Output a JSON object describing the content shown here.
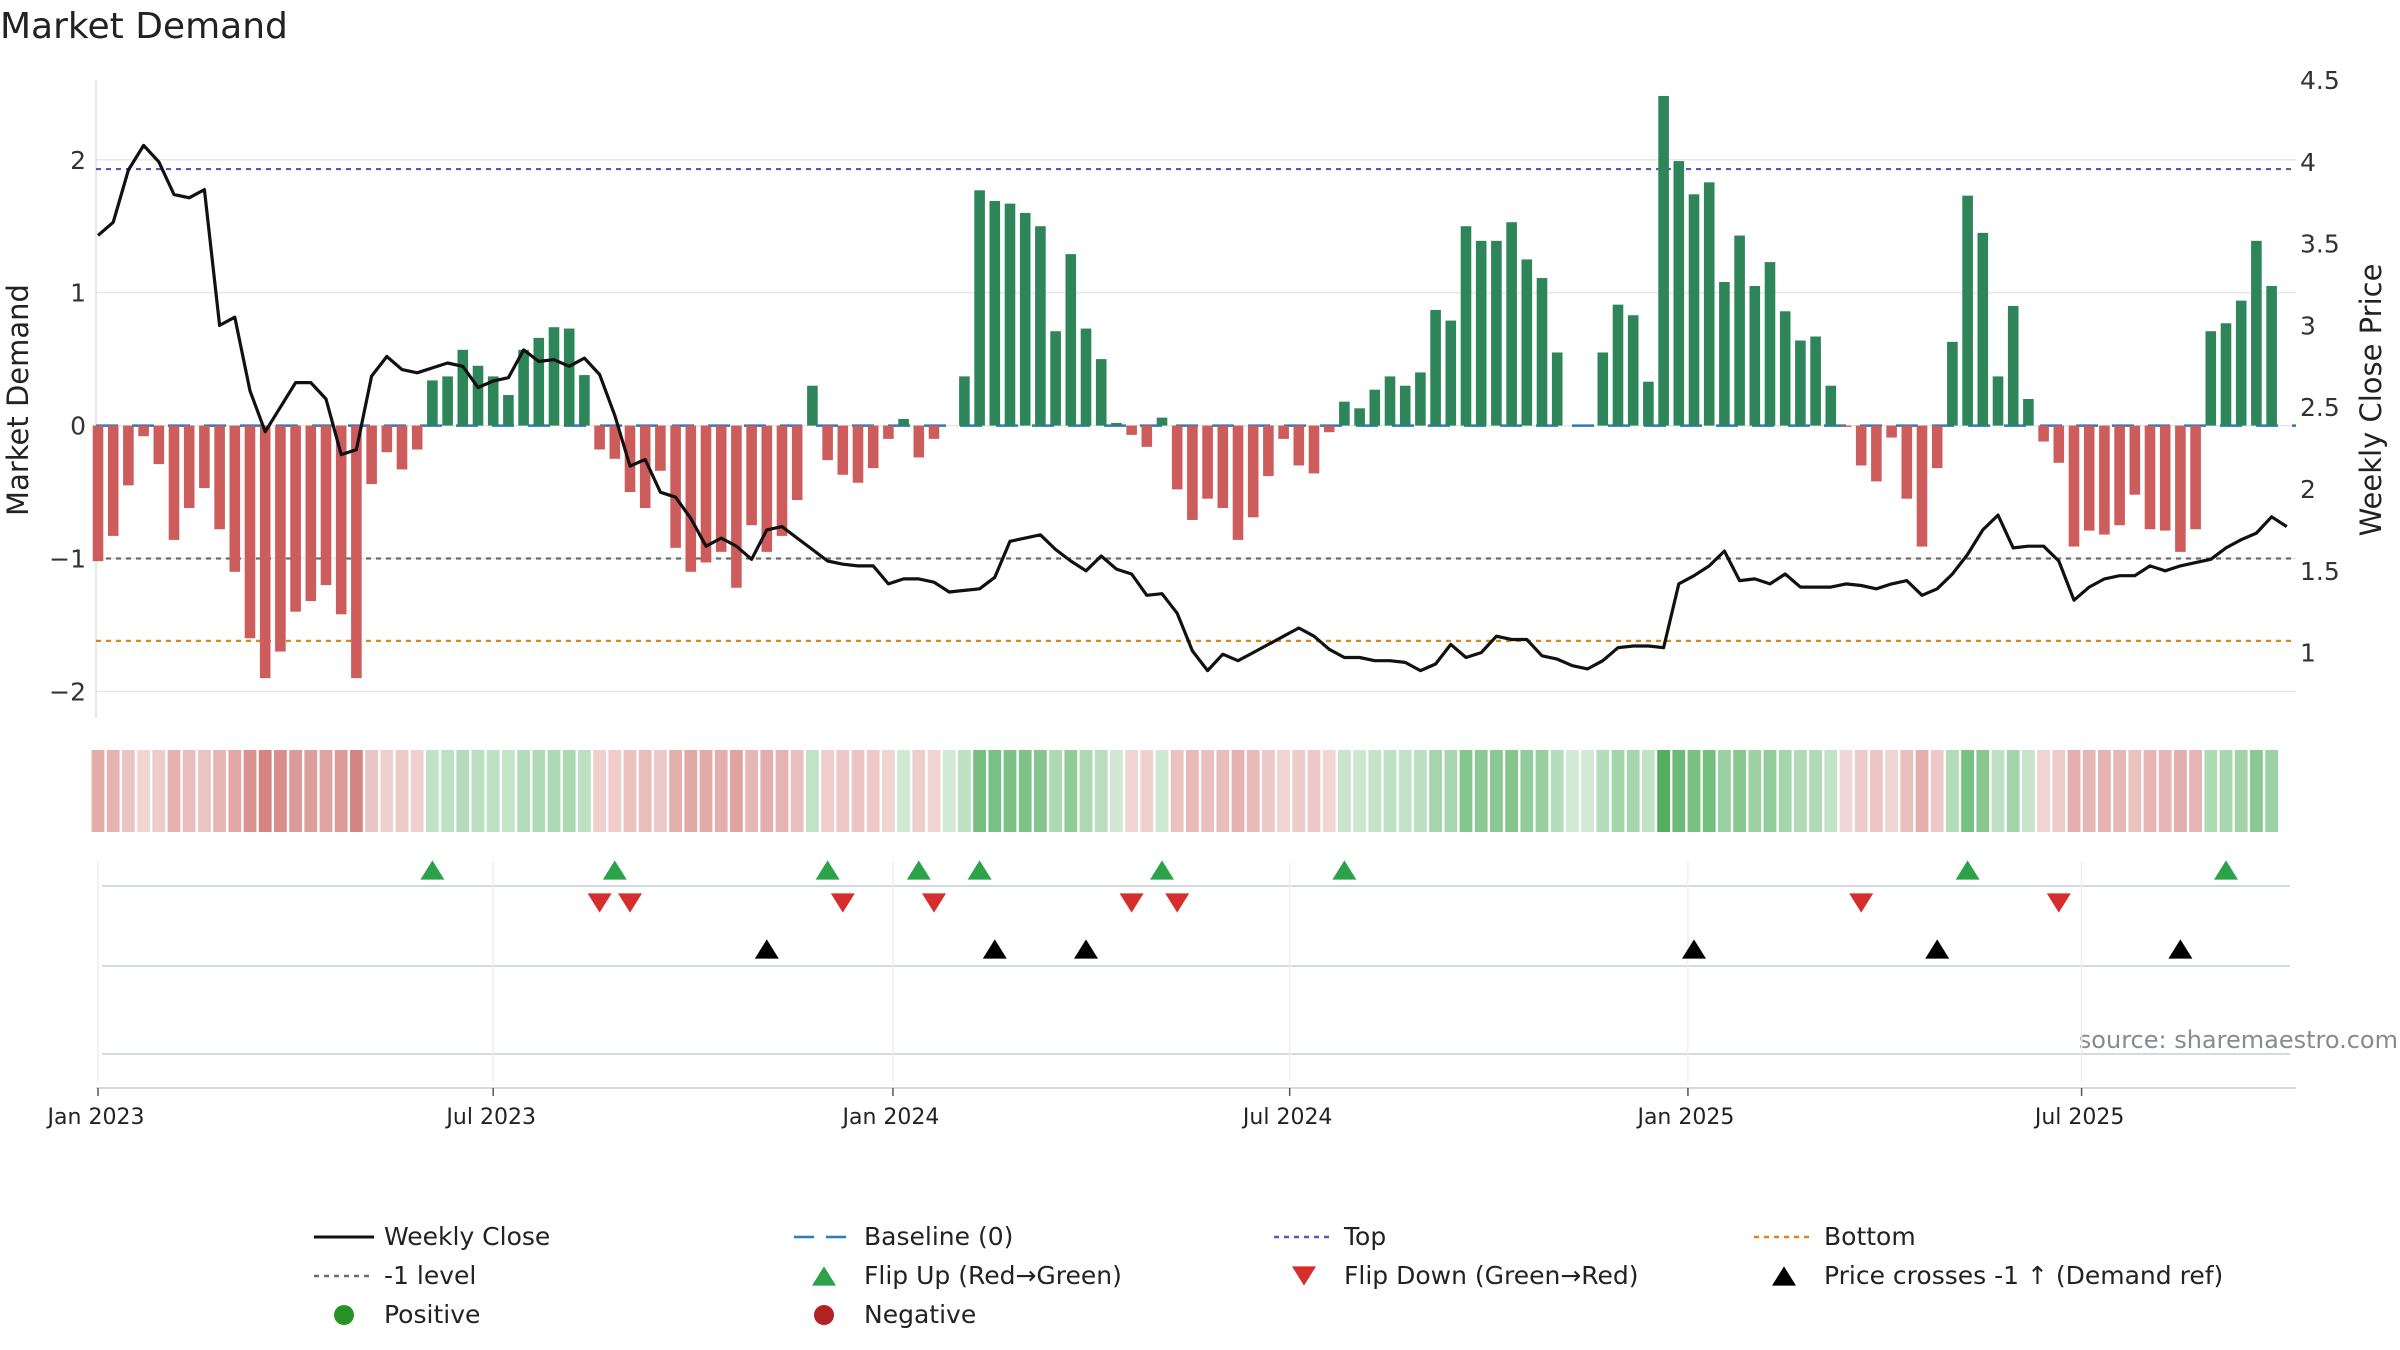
{
  "chart_data": {
    "type": "bar",
    "title": "Market Demand",
    "ylabel_left": "Market Demand",
    "ylabel_right": "Weekly Close Price",
    "source": "source: sharemaestro.com",
    "left_axis": {
      "range": [
        -2.2,
        2.6
      ],
      "ticks": [
        -2,
        -1,
        0,
        1,
        2
      ],
      "tick_labels": [
        "−2",
        "−1",
        "0",
        "1",
        "2"
      ]
    },
    "right_axis": {
      "range": [
        0.6,
        4.5
      ],
      "ticks": [
        1,
        1.5,
        2,
        2.5,
        3,
        3.5,
        4,
        4.5
      ],
      "tick_labels": [
        "1",
        "1.5",
        "2",
        "2.5",
        "3",
        "3.5",
        "4",
        "4.5"
      ]
    },
    "x_ticks": [
      {
        "label": "Jan 2023",
        "week": 0
      },
      {
        "label": "Jul 2023",
        "week": 26
      },
      {
        "label": "Jan 2024",
        "week": 52.3
      },
      {
        "label": "Jul 2024",
        "week": 78.4
      },
      {
        "label": "Jan 2025",
        "week": 104.6
      },
      {
        "label": "Jul 2025",
        "week": 130.5
      }
    ],
    "demand": [
      -1.02,
      -0.83,
      -0.45,
      -0.08,
      -0.29,
      -0.86,
      -0.62,
      -0.47,
      -0.78,
      -1.1,
      -1.6,
      -1.9,
      -1.7,
      -1.4,
      -1.32,
      -1.2,
      -1.42,
      -1.9,
      -0.44,
      -0.2,
      -0.33,
      -0.18,
      0.34,
      0.37,
      0.57,
      0.45,
      0.37,
      0.23,
      0.57,
      0.66,
      0.74,
      0.73,
      0.38,
      -0.18,
      -0.25,
      -0.5,
      -0.62,
      -0.34,
      -0.92,
      -1.1,
      -1.03,
      -0.95,
      -1.22,
      -0.75,
      -0.95,
      -0.83,
      -0.56,
      0.3,
      -0.26,
      -0.37,
      -0.43,
      -0.32,
      -0.1,
      0.05,
      -0.24,
      -0.1,
      0.0,
      0.37,
      1.77,
      1.69,
      1.67,
      1.6,
      1.5,
      0.71,
      1.29,
      0.73,
      0.5,
      0.02,
      -0.07,
      -0.16,
      0.06,
      -0.48,
      -0.71,
      -0.55,
      -0.62,
      -0.86,
      -0.69,
      -0.38,
      -0.1,
      -0.3,
      -0.36,
      -0.05,
      0.18,
      0.13,
      0.27,
      0.37,
      0.3,
      0.4,
      0.87,
      0.79,
      1.5,
      1.39,
      1.39,
      1.53,
      1.25,
      1.11,
      0.55,
      0.0,
      0.0,
      0.55,
      0.91,
      0.83,
      0.33,
      2.48,
      1.99,
      1.74,
      1.83,
      1.08,
      1.43,
      1.05,
      1.23,
      0.86,
      0.64,
      0.67,
      0.3,
      -0.01,
      -0.3,
      -0.42,
      -0.09,
      -0.55,
      -0.91,
      -0.32,
      0.63,
      1.73,
      1.45,
      0.37,
      0.9,
      0.2,
      -0.12,
      -0.28,
      -0.91,
      -0.79,
      -0.82,
      -0.75,
      -0.52,
      -0.78,
      -0.79,
      -0.95,
      -0.78,
      0.71,
      0.77,
      0.94,
      1.39,
      1.05
    ],
    "weekly_close": [
      3.55,
      3.63,
      3.95,
      4.1,
      4.0,
      3.8,
      3.78,
      3.83,
      3.0,
      3.05,
      2.6,
      2.35,
      2.5,
      2.65,
      2.65,
      2.55,
      2.21,
      2.24,
      2.69,
      2.81,
      2.73,
      2.71,
      2.74,
      2.77,
      2.75,
      2.62,
      2.66,
      2.68,
      2.85,
      2.78,
      2.79,
      2.75,
      2.8,
      2.7,
      2.45,
      2.14,
      2.18,
      1.98,
      1.95,
      1.82,
      1.65,
      1.7,
      1.65,
      1.57,
      1.75,
      1.77,
      1.7,
      1.63,
      1.56,
      1.54,
      1.53,
      1.53,
      1.42,
      1.45,
      1.45,
      1.43,
      1.37,
      1.38,
      1.39,
      1.46,
      1.68,
      1.7,
      1.72,
      1.63,
      1.56,
      1.5,
      1.59,
      1.51,
      1.48,
      1.35,
      1.36,
      1.24,
      1.01,
      0.89,
      0.99,
      0.95,
      1.0,
      1.05,
      1.1,
      1.15,
      1.1,
      1.02,
      0.97,
      0.97,
      0.95,
      0.95,
      0.94,
      0.89,
      0.93,
      1.05,
      0.97,
      1.0,
      1.1,
      1.08,
      1.08,
      0.98,
      0.96,
      0.92,
      0.9,
      0.95,
      1.03,
      1.04,
      1.04,
      1.03,
      1.42,
      1.47,
      1.53,
      1.62,
      1.44,
      1.45,
      1.42,
      1.48,
      1.4,
      1.4,
      1.4,
      1.42,
      1.41,
      1.39,
      1.42,
      1.44,
      1.35,
      1.39,
      1.48,
      1.6,
      1.75,
      1.84,
      1.64,
      1.65,
      1.65,
      1.56,
      1.32,
      1.4,
      1.45,
      1.47,
      1.47,
      1.53,
      1.5,
      1.53,
      1.55,
      1.57,
      1.64,
      1.69,
      1.73,
      1.83,
      1.77
    ],
    "reference_lines": [
      {
        "name": "Top",
        "axis": "left",
        "value": 1.93,
        "color": "#5b58b0"
      },
      {
        "name": "-1 level",
        "axis": "left",
        "value": -1.0,
        "color": "#6d6d6d"
      },
      {
        "name": "Bottom",
        "axis": "left",
        "value": -1.62,
        "color": "#d9861a"
      },
      {
        "name": "Baseline (0)",
        "axis": "left",
        "value": 0,
        "color": "#2b7bb9"
      }
    ],
    "flip_up_weeks": [
      22,
      34,
      48,
      54,
      58,
      70,
      82,
      123,
      140
    ],
    "flip_down_weeks": [
      33,
      35,
      49,
      55,
      68,
      71,
      116,
      129
    ],
    "price_cross_weeks": [
      44,
      59,
      65,
      105,
      121,
      137
    ],
    "legend": [
      {
        "label": "Weekly Close",
        "symbol": "line",
        "color": "#111111"
      },
      {
        "label": "Baseline (0)",
        "symbol": "dash",
        "color": "#2b7bb9"
      },
      {
        "label": "Top",
        "symbol": "dot",
        "color": "#5b58b0"
      },
      {
        "label": "Bottom",
        "symbol": "dot",
        "color": "#d9861a"
      },
      {
        "label": "-1 level",
        "symbol": "dot",
        "color": "#6d6d6d"
      },
      {
        "label": "Flip Up (Red→Green)",
        "symbol": "tri-up",
        "color": "#2ca34a"
      },
      {
        "label": "Flip Down (Green→Red)",
        "symbol": "tri-down",
        "color": "#d62d2d"
      },
      {
        "label": "Price crosses -1 ↑ (Demand ref)",
        "symbol": "tri-up",
        "color": "#000000"
      },
      {
        "label": "Positive",
        "symbol": "circle",
        "color": "#279327"
      },
      {
        "label": "Negative",
        "symbol": "circle",
        "color": "#b22222"
      }
    ],
    "colors": {
      "positive_bar": "#2e855a",
      "negative_bar": "#cd5c5c",
      "positive_strip": "#4aaa57",
      "negative_strip": "#c9645f"
    }
  }
}
